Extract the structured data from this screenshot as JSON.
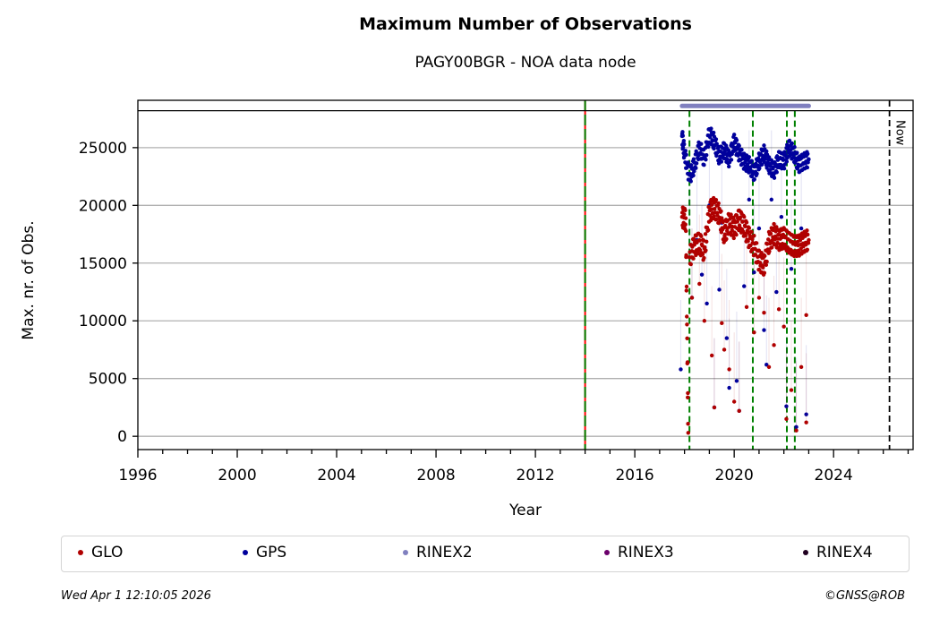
{
  "chart_data": {
    "type": "scatter",
    "title": "Maximum Number of Observations",
    "subtitle": "PAGY00BGR - NOA data node",
    "xlabel": "Year",
    "ylabel": "Max. nr. of Obs.",
    "xlim": [
      1996,
      2027.2
    ],
    "ylim": [
      -1150,
      29100
    ],
    "grid": "horizontal",
    "xticks": [
      1996,
      2000,
      2004,
      2008,
      2012,
      2016,
      2020,
      2024
    ],
    "xtick_labels": [
      "1996",
      "2000",
      "2004",
      "2008",
      "2012",
      "2016",
      "2020",
      "2024"
    ],
    "yticks": [
      0,
      5000,
      10000,
      15000,
      20000,
      25000
    ],
    "ytick_labels": [
      "0",
      "5000",
      "10000",
      "15000",
      "20000",
      "25000"
    ],
    "upper_band_separator": 28200,
    "series": [
      {
        "name": "GLO",
        "color": "#b00000",
        "segments": [
          {
            "x": [
              2017.9,
              2018.05,
              2018.15
            ],
            "y": [
              19000,
              18800,
              300
            ]
          },
          {
            "x": [
              2018.2,
              2018.4,
              2018.6,
              2018.8,
              2019.0,
              2019.2,
              2019.4,
              2019.6,
              2019.8,
              2020.0,
              2020.2,
              2020.4,
              2020.6,
              2020.8,
              2021.0,
              2021.2,
              2021.4,
              2021.6,
              2021.8,
              2022.0,
              2022.2,
              2022.4,
              2022.6,
              2022.8,
              2023.0
            ],
            "y": [
              15500,
              16500,
              16800,
              16000,
              19500,
              19800,
              19200,
              17500,
              18500,
              18000,
              18800,
              18200,
              17200,
              16500,
              15200,
              14800,
              16800,
              17500,
              17000,
              17200,
              16800,
              16500,
              16500,
              16800,
              17000
            ]
          }
        ],
        "outliers": [
          [
            2018.3,
            12000
          ],
          [
            2018.6,
            13200
          ],
          [
            2018.8,
            10000
          ],
          [
            2019.1,
            7000
          ],
          [
            2019.2,
            2500
          ],
          [
            2019.5,
            9800
          ],
          [
            2019.6,
            7500
          ],
          [
            2019.8,
            5800
          ],
          [
            2020.0,
            3000
          ],
          [
            2020.2,
            2200
          ],
          [
            2020.5,
            11200
          ],
          [
            2020.8,
            9000
          ],
          [
            2021.0,
            12000
          ],
          [
            2021.2,
            10700
          ],
          [
            2021.4,
            6000
          ],
          [
            2021.6,
            7900
          ],
          [
            2021.8,
            11000
          ],
          [
            2022.0,
            9500
          ],
          [
            2022.1,
            1500
          ],
          [
            2022.3,
            4000
          ],
          [
            2022.5,
            500
          ],
          [
            2022.7,
            6000
          ],
          [
            2022.9,
            1200
          ],
          [
            2022.9,
            10500
          ]
        ]
      },
      {
        "name": "GPS",
        "color": "#00009c",
        "segments": [
          {
            "x": [
              2017.9,
              2018.0,
              2018.2,
              2018.4,
              2018.6,
              2018.8,
              2019.0,
              2019.2,
              2019.4,
              2019.6,
              2019.8,
              2020.0,
              2020.2,
              2020.4,
              2020.6,
              2020.8,
              2021.0,
              2021.2,
              2021.4,
              2021.6,
              2021.8,
              2022.0,
              2022.2,
              2022.4,
              2022.6,
              2022.8,
              2023.0
            ],
            "y": [
              26000,
              24500,
              22500,
              23500,
              25000,
              24000,
              26200,
              25500,
              24200,
              24800,
              24000,
              25500,
              24500,
              23800,
              23500,
              22800,
              23800,
              24500,
              23500,
              23000,
              24000,
              23800,
              25000,
              24500,
              23500,
              23800,
              24000
            ]
          }
        ],
        "outliers": [
          [
            2017.85,
            5800
          ],
          [
            2018.2,
            15500
          ],
          [
            2018.3,
            12000
          ],
          [
            2018.5,
            17000
          ],
          [
            2018.7,
            14000
          ],
          [
            2018.9,
            11500
          ],
          [
            2019.0,
            20000
          ],
          [
            2019.2,
            2500
          ],
          [
            2019.4,
            12700
          ],
          [
            2019.5,
            18500
          ],
          [
            2019.7,
            8500
          ],
          [
            2019.8,
            4200
          ],
          [
            2020.1,
            4800
          ],
          [
            2020.2,
            2200
          ],
          [
            2020.4,
            13000
          ],
          [
            2020.6,
            20500
          ],
          [
            2020.8,
            14200
          ],
          [
            2021.0,
            18000
          ],
          [
            2021.2,
            9200
          ],
          [
            2021.3,
            6200
          ],
          [
            2021.5,
            20500
          ],
          [
            2021.7,
            12500
          ],
          [
            2021.9,
            19000
          ],
          [
            2022.1,
            2600
          ],
          [
            2022.3,
            14500
          ],
          [
            2022.5,
            800
          ],
          [
            2022.7,
            18000
          ],
          [
            2022.9,
            1900
          ]
        ]
      },
      {
        "name": "RINEX2",
        "color": "#8080bf",
        "availability": [
          2017.9,
          2023.0
        ]
      },
      {
        "name": "RINEX3",
        "color": "#6b006b"
      },
      {
        "name": "RINEX4",
        "color": "#200020"
      }
    ],
    "vertical_lines": [
      {
        "x": 2014.0,
        "style": "red-green-dashed",
        "colors": [
          "#ff0000",
          "#008000"
        ]
      },
      {
        "x": 2018.2,
        "style": "dashed",
        "color": "#008000"
      },
      {
        "x": 2020.75,
        "style": "dashed",
        "color": "#008000"
      },
      {
        "x": 2022.12,
        "style": "dashed",
        "color": "#008000"
      },
      {
        "x": 2022.44,
        "style": "dashed",
        "color": "#008000"
      },
      {
        "x": 2026.25,
        "style": "dashed",
        "color": "#000000",
        "label": "Now"
      }
    ],
    "legend": {
      "placement": "bottom",
      "entries": [
        {
          "label": "GLO",
          "color": "#b00000"
        },
        {
          "label": "GPS",
          "color": "#00009c"
        },
        {
          "label": "RINEX2",
          "color": "#8080bf"
        },
        {
          "label": "RINEX3",
          "color": "#6b006b"
        },
        {
          "label": "RINEX4",
          "color": "#200020"
        }
      ]
    },
    "annotations": [
      "Now"
    ]
  },
  "footer": {
    "timestamp": "Wed Apr  1 12:10:05 2026",
    "copyright": "©GNSS@ROB"
  }
}
